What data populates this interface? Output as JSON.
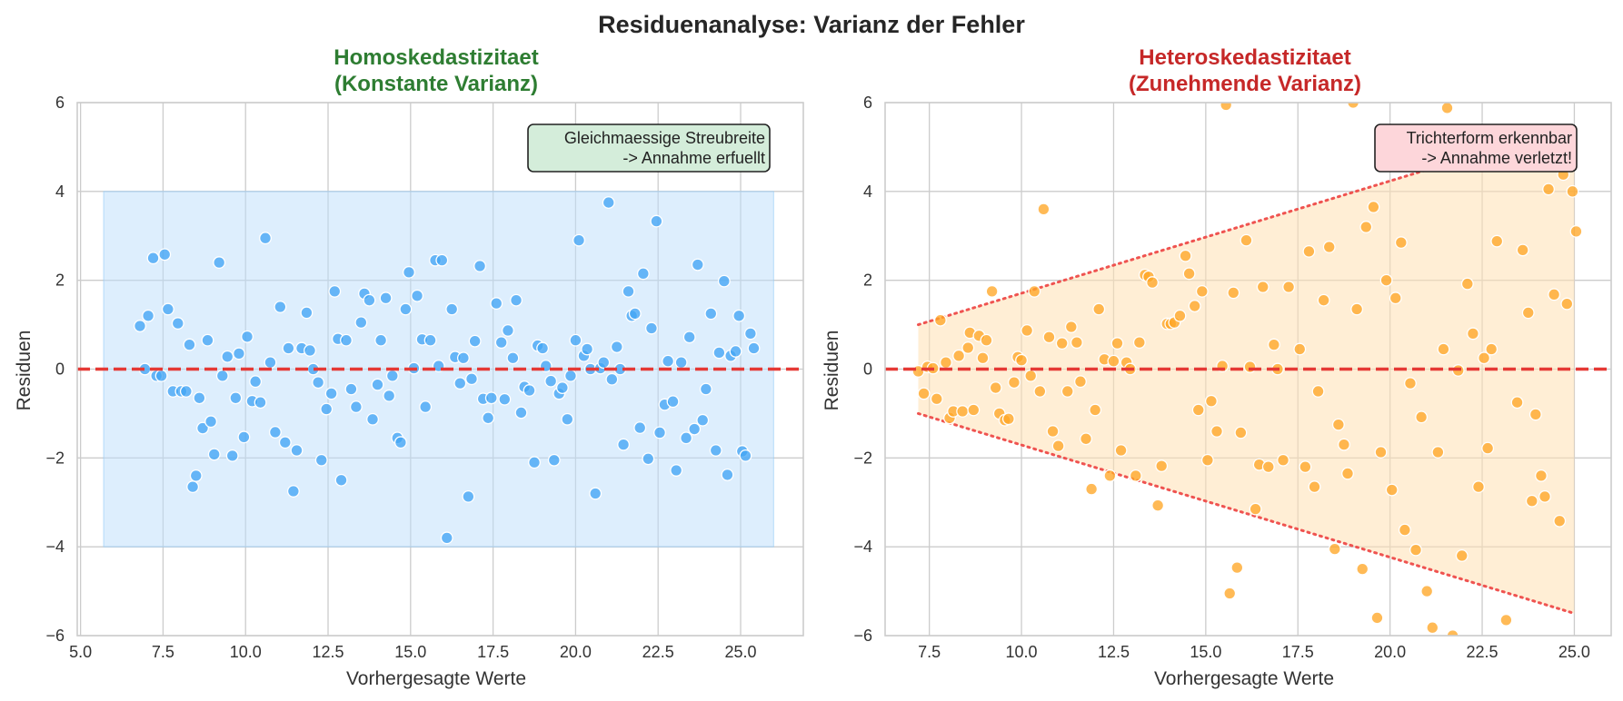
{
  "figure_title": "Residuenanalyse: Varianz der Fehler",
  "colors": {
    "left_title": "#2e7d32",
    "right_title": "#c62828",
    "left_points": "#42a5f5",
    "right_points": "#ffa726",
    "left_band": "#bbdefb",
    "right_band": "#ffe0b2",
    "zero_line": "#e53935",
    "annot_left_bg": "#d4edda",
    "annot_right_bg": "#fdd6da"
  },
  "chart_data": [
    {
      "type": "scatter",
      "title_line1": "Homoskedastizitaet",
      "title_line2": "(Konstante Varianz)",
      "xlabel": "Vorhergesagte Werte",
      "ylabel": "Residuen",
      "xlim": [
        4.9,
        26.9
      ],
      "ylim": [
        -6,
        6
      ],
      "xticks": [
        5.0,
        7.5,
        10.0,
        12.5,
        15.0,
        17.5,
        20.0,
        22.5,
        25.0
      ],
      "xtick_labels": [
        "5.0",
        "7.5",
        "10.0",
        "12.5",
        "15.0",
        "17.5",
        "20.0",
        "22.5",
        "25.0"
      ],
      "yticks": [
        -6,
        -4,
        -2,
        0,
        2,
        4,
        6
      ],
      "ytick_labels": [
        "−6",
        "−4",
        "−2",
        "0",
        "2",
        "4",
        "6"
      ],
      "reference_line_y": 0,
      "band": {
        "x": [
          5.7,
          26.0
        ],
        "upper": [
          4,
          4
        ],
        "lower": [
          -4,
          -4
        ]
      },
      "annotation_line1": "Gleichmaessige Streubreite",
      "annotation_line2": "-> Annahme erfuellt",
      "points": [
        [
          6.8,
          0.97
        ],
        [
          6.95,
          0.0
        ],
        [
          7.05,
          1.2
        ],
        [
          7.2,
          2.5
        ],
        [
          7.3,
          -0.15
        ],
        [
          7.45,
          -0.15
        ],
        [
          7.55,
          2.58
        ],
        [
          7.65,
          1.35
        ],
        [
          7.8,
          -0.5
        ],
        [
          7.95,
          1.03
        ],
        [
          8.05,
          -0.5
        ],
        [
          8.2,
          -0.5
        ],
        [
          8.3,
          0.55
        ],
        [
          8.4,
          -2.65
        ],
        [
          8.5,
          -2.4
        ],
        [
          8.6,
          -0.65
        ],
        [
          8.7,
          -1.33
        ],
        [
          8.85,
          0.65
        ],
        [
          8.95,
          -1.18
        ],
        [
          9.05,
          -1.92
        ],
        [
          9.2,
          2.4
        ],
        [
          9.3,
          -0.15
        ],
        [
          9.45,
          0.28
        ],
        [
          9.6,
          -1.95
        ],
        [
          9.7,
          -0.65
        ],
        [
          9.8,
          0.35
        ],
        [
          9.95,
          -1.53
        ],
        [
          10.05,
          0.73
        ],
        [
          10.2,
          -0.72
        ],
        [
          10.3,
          -0.28
        ],
        [
          10.45,
          -0.75
        ],
        [
          10.6,
          2.95
        ],
        [
          10.75,
          0.15
        ],
        [
          10.9,
          -1.42
        ],
        [
          11.05,
          1.4
        ],
        [
          11.2,
          -1.65
        ],
        [
          11.3,
          0.47
        ],
        [
          11.45,
          -2.75
        ],
        [
          11.55,
          -1.83
        ],
        [
          11.7,
          0.47
        ],
        [
          11.85,
          1.27
        ],
        [
          11.95,
          0.42
        ],
        [
          12.05,
          0.0
        ],
        [
          12.2,
          -0.3
        ],
        [
          12.3,
          -2.05
        ],
        [
          12.45,
          -0.9
        ],
        [
          12.6,
          -0.55
        ],
        [
          12.7,
          1.75
        ],
        [
          12.8,
          0.68
        ],
        [
          12.9,
          -2.5
        ],
        [
          13.05,
          0.65
        ],
        [
          13.2,
          -0.45
        ],
        [
          13.35,
          -0.85
        ],
        [
          13.5,
          1.05
        ],
        [
          13.6,
          1.7
        ],
        [
          13.75,
          1.55
        ],
        [
          13.85,
          -1.13
        ],
        [
          14.0,
          -0.35
        ],
        [
          14.1,
          0.65
        ],
        [
          14.25,
          1.6
        ],
        [
          14.35,
          -0.6
        ],
        [
          14.45,
          -0.15
        ],
        [
          14.6,
          -1.55
        ],
        [
          14.7,
          -1.65
        ],
        [
          14.85,
          1.35
        ],
        [
          14.95,
          2.18
        ],
        [
          15.1,
          0.02
        ],
        [
          15.2,
          1.65
        ],
        [
          15.35,
          0.67
        ],
        [
          15.45,
          -0.85
        ],
        [
          15.6,
          0.65
        ],
        [
          15.75,
          2.45
        ],
        [
          15.85,
          0.07
        ],
        [
          15.95,
          2.45
        ],
        [
          16.1,
          -3.8
        ],
        [
          16.25,
          1.35
        ],
        [
          16.35,
          0.27
        ],
        [
          16.5,
          -0.32
        ],
        [
          16.6,
          0.25
        ],
        [
          16.75,
          -2.87
        ],
        [
          16.85,
          -0.22
        ],
        [
          16.95,
          0.63
        ],
        [
          17.1,
          2.32
        ],
        [
          17.2,
          -0.67
        ],
        [
          17.35,
          -1.1
        ],
        [
          17.45,
          -0.65
        ],
        [
          17.6,
          1.48
        ],
        [
          17.75,
          0.6
        ],
        [
          17.85,
          -0.68
        ],
        [
          17.95,
          0.87
        ],
        [
          18.1,
          0.25
        ],
        [
          18.2,
          1.55
        ],
        [
          18.35,
          -0.98
        ],
        [
          18.45,
          -0.4
        ],
        [
          18.6,
          -0.48
        ],
        [
          18.75,
          -2.1
        ],
        [
          18.85,
          0.53
        ],
        [
          19.0,
          0.47
        ],
        [
          19.1,
          0.07
        ],
        [
          19.25,
          -0.27
        ],
        [
          19.35,
          -2.05
        ],
        [
          19.5,
          -0.55
        ],
        [
          19.6,
          -0.42
        ],
        [
          19.75,
          -1.13
        ],
        [
          19.85,
          -0.15
        ],
        [
          20.0,
          0.65
        ],
        [
          20.1,
          2.9
        ],
        [
          20.25,
          0.3
        ],
        [
          20.35,
          0.45
        ],
        [
          20.45,
          0.0
        ],
        [
          20.6,
          -2.8
        ],
        [
          20.75,
          0.02
        ],
        [
          20.85,
          0.15
        ],
        [
          21.0,
          3.75
        ],
        [
          21.1,
          -0.23
        ],
        [
          21.25,
          0.5
        ],
        [
          21.35,
          0.0
        ],
        [
          21.45,
          -1.7
        ],
        [
          21.6,
          1.75
        ],
        [
          21.7,
          1.2
        ],
        [
          21.8,
          1.25
        ],
        [
          21.95,
          -1.32
        ],
        [
          22.05,
          2.15
        ],
        [
          22.2,
          -2.02
        ],
        [
          22.3,
          0.92
        ],
        [
          22.45,
          3.33
        ],
        [
          22.55,
          -1.43
        ],
        [
          22.7,
          -0.8
        ],
        [
          22.8,
          0.18
        ],
        [
          22.95,
          -0.73
        ],
        [
          23.05,
          -2.28
        ],
        [
          23.2,
          0.15
        ],
        [
          23.35,
          -1.55
        ],
        [
          23.45,
          0.72
        ],
        [
          23.6,
          -1.35
        ],
        [
          23.7,
          2.35
        ],
        [
          23.85,
          -1.15
        ],
        [
          23.95,
          -0.45
        ],
        [
          24.1,
          1.25
        ],
        [
          24.25,
          -1.83
        ],
        [
          24.35,
          0.37
        ],
        [
          24.5,
          1.98
        ],
        [
          24.6,
          -2.38
        ],
        [
          24.7,
          0.3
        ],
        [
          24.85,
          0.4
        ],
        [
          24.95,
          1.2
        ],
        [
          25.05,
          -1.85
        ],
        [
          25.15,
          -1.95
        ],
        [
          25.3,
          0.8
        ],
        [
          25.4,
          0.47
        ]
      ]
    },
    {
      "type": "scatter",
      "title_line1": "Heteroskedastizitaet",
      "title_line2": "(Zunehmende Varianz)",
      "xlabel": "Vorhergesagte Werte",
      "ylabel": "Residuen",
      "xlim": [
        6.3,
        26.0
      ],
      "ylim": [
        -6,
        6
      ],
      "xticks": [
        7.5,
        10.0,
        12.5,
        15.0,
        17.5,
        20.0,
        22.5,
        25.0
      ],
      "xtick_labels": [
        "7.5",
        "10.0",
        "12.5",
        "15.0",
        "17.5",
        "20.0",
        "22.5",
        "25.0"
      ],
      "yticks": [
        -6,
        -4,
        -2,
        0,
        2,
        4,
        6
      ],
      "ytick_labels": [
        "−6",
        "−4",
        "−2",
        "0",
        "2",
        "4",
        "6"
      ],
      "reference_line_y": 0,
      "band": {
        "x": [
          7.2,
          25.0
        ],
        "upper": [
          1.0,
          5.5
        ],
        "lower": [
          -1.0,
          -5.5
        ]
      },
      "annotation_line1": "Trichterform erkennbar",
      "annotation_line2": "-> Annahme verletzt!",
      "points": [
        [
          7.2,
          -0.05
        ],
        [
          7.35,
          -0.55
        ],
        [
          7.45,
          0.05
        ],
        [
          7.6,
          0.02
        ],
        [
          7.7,
          -0.67
        ],
        [
          7.8,
          1.1
        ],
        [
          7.95,
          0.15
        ],
        [
          8.05,
          -1.1
        ],
        [
          8.15,
          -0.95
        ],
        [
          8.3,
          0.3
        ],
        [
          8.4,
          -0.95
        ],
        [
          8.55,
          0.48
        ],
        [
          8.6,
          0.82
        ],
        [
          8.7,
          -0.92
        ],
        [
          8.85,
          0.75
        ],
        [
          8.95,
          0.25
        ],
        [
          9.05,
          0.65
        ],
        [
          9.2,
          1.75
        ],
        [
          9.3,
          -0.42
        ],
        [
          9.4,
          -1.0
        ],
        [
          9.55,
          -1.15
        ],
        [
          9.65,
          -1.12
        ],
        [
          9.8,
          -0.3
        ],
        [
          9.9,
          0.27
        ],
        [
          10.0,
          0.2
        ],
        [
          10.15,
          0.87
        ],
        [
          10.25,
          -0.15
        ],
        [
          10.35,
          1.75
        ],
        [
          10.5,
          -0.5
        ],
        [
          10.6,
          3.6
        ],
        [
          10.75,
          0.72
        ],
        [
          10.85,
          -1.4
        ],
        [
          11.0,
          -1.73
        ],
        [
          11.1,
          0.58
        ],
        [
          11.25,
          -0.5
        ],
        [
          11.35,
          0.95
        ],
        [
          11.5,
          0.6
        ],
        [
          11.6,
          -0.28
        ],
        [
          11.75,
          -1.57
        ],
        [
          11.9,
          -2.7
        ],
        [
          12.0,
          -0.92
        ],
        [
          12.1,
          1.35
        ],
        [
          12.25,
          0.22
        ],
        [
          12.4,
          -2.4
        ],
        [
          12.5,
          0.18
        ],
        [
          12.6,
          0.58
        ],
        [
          12.7,
          -1.83
        ],
        [
          12.85,
          0.15
        ],
        [
          12.95,
          0.0
        ],
        [
          13.1,
          -2.4
        ],
        [
          13.2,
          0.6
        ],
        [
          13.35,
          2.12
        ],
        [
          13.45,
          2.08
        ],
        [
          13.55,
          1.95
        ],
        [
          13.7,
          -3.07
        ],
        [
          13.8,
          -2.18
        ],
        [
          13.95,
          1.02
        ],
        [
          14.05,
          1.02
        ],
        [
          14.15,
          1.05
        ],
        [
          14.3,
          1.2
        ],
        [
          14.45,
          2.55
        ],
        [
          14.55,
          2.15
        ],
        [
          14.7,
          1.42
        ],
        [
          14.8,
          -0.92
        ],
        [
          14.9,
          1.75
        ],
        [
          15.05,
          -2.05
        ],
        [
          15.15,
          -0.72
        ],
        [
          15.3,
          -1.4
        ],
        [
          15.45,
          0.07
        ],
        [
          15.55,
          5.95
        ],
        [
          15.65,
          -5.05
        ],
        [
          15.75,
          1.72
        ],
        [
          15.85,
          -4.47
        ],
        [
          15.95,
          -1.43
        ],
        [
          16.1,
          2.9
        ],
        [
          16.2,
          0.05
        ],
        [
          16.35,
          -3.15
        ],
        [
          16.45,
          -2.15
        ],
        [
          16.55,
          1.85
        ],
        [
          16.7,
          -2.2
        ],
        [
          16.85,
          0.55
        ],
        [
          16.95,
          0.0
        ],
        [
          17.1,
          -2.05
        ],
        [
          17.25,
          1.85
        ],
        [
          17.55,
          0.45
        ],
        [
          17.7,
          -2.2
        ],
        [
          17.8,
          2.65
        ],
        [
          17.95,
          -2.65
        ],
        [
          18.05,
          -0.5
        ],
        [
          18.2,
          1.55
        ],
        [
          18.35,
          2.75
        ],
        [
          18.5,
          -4.05
        ],
        [
          18.6,
          -1.25
        ],
        [
          18.75,
          -1.7
        ],
        [
          18.85,
          -2.35
        ],
        [
          19.0,
          6.0
        ],
        [
          19.1,
          1.35
        ],
        [
          19.25,
          -4.5
        ],
        [
          19.35,
          3.2
        ],
        [
          19.55,
          3.65
        ],
        [
          19.65,
          -5.6
        ],
        [
          19.75,
          -1.87
        ],
        [
          19.9,
          2.0
        ],
        [
          20.05,
          -2.72
        ],
        [
          20.15,
          1.6
        ],
        [
          20.3,
          2.85
        ],
        [
          20.4,
          -3.62
        ],
        [
          20.55,
          -0.32
        ],
        [
          20.7,
          -4.07
        ],
        [
          20.85,
          -1.08
        ],
        [
          21.0,
          -5.0
        ],
        [
          21.15,
          -5.82
        ],
        [
          21.3,
          -1.87
        ],
        [
          21.45,
          0.45
        ],
        [
          21.55,
          5.88
        ],
        [
          21.7,
          -6.0
        ],
        [
          21.85,
          -0.03
        ],
        [
          21.95,
          -4.2
        ],
        [
          22.1,
          1.92
        ],
        [
          22.25,
          0.8
        ],
        [
          22.4,
          -2.65
        ],
        [
          22.55,
          0.25
        ],
        [
          22.65,
          -1.78
        ],
        [
          22.75,
          0.45
        ],
        [
          22.9,
          2.88
        ],
        [
          23.15,
          -5.65
        ],
        [
          23.45,
          -0.75
        ],
        [
          23.6,
          2.68
        ],
        [
          23.75,
          1.27
        ],
        [
          23.85,
          -2.97
        ],
        [
          23.95,
          -1.02
        ],
        [
          24.1,
          -2.4
        ],
        [
          24.2,
          -2.87
        ],
        [
          24.3,
          4.05
        ],
        [
          24.45,
          1.68
        ],
        [
          24.6,
          -3.42
        ],
        [
          24.7,
          4.38
        ],
        [
          24.8,
          1.47
        ],
        [
          24.95,
          4.0
        ],
        [
          25.05,
          3.1
        ]
      ]
    }
  ]
}
